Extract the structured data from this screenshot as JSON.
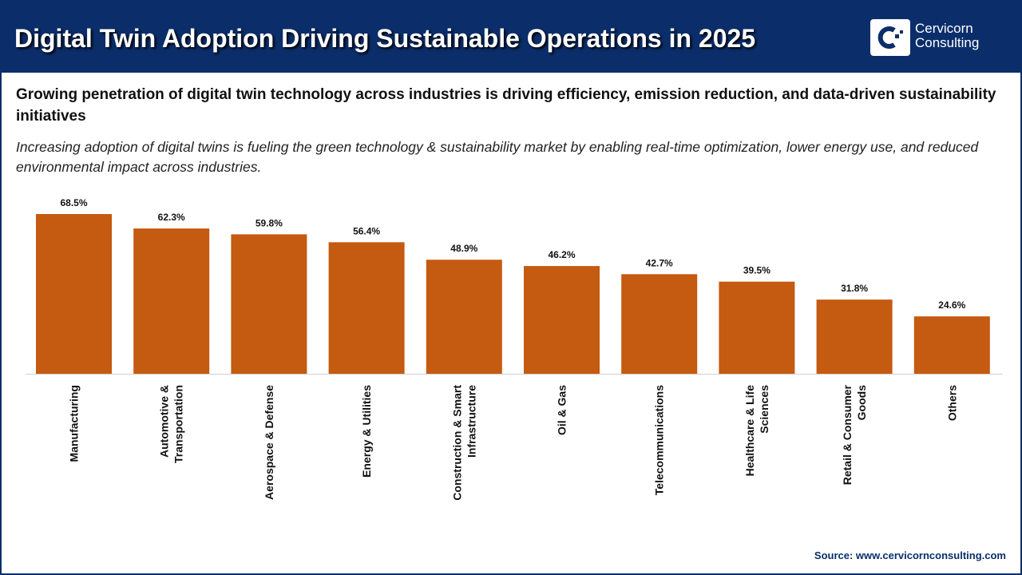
{
  "header": {
    "title": "Digital Twin Adoption Driving Sustainable Operations in 2025",
    "logo_text_line1": "Cervicorn",
    "logo_text_line2": "Consulting",
    "brand_color": "#0b2e6b"
  },
  "subtitle": "Growing penetration of digital twin technology across industries is driving efficiency, emission reduction, and data-driven sustainability initiatives",
  "description": "Increasing adoption of digital twins is fueling the green technology & sustainability market by enabling real-time optimization, lower energy use, and reduced environmental impact across industries.",
  "source": "Source: www.cervicornconsulting.com",
  "chart_data": {
    "type": "bar",
    "categories": [
      [
        "Manufacturing"
      ],
      [
        "Automotive &",
        "Transportation"
      ],
      [
        "Aerospace & Defense"
      ],
      [
        "Energy & Utilities"
      ],
      [
        "Construction & Smart",
        "Infrastructure"
      ],
      [
        "Oil & Gas"
      ],
      [
        "Telecommunications"
      ],
      [
        "Healthcare & Life",
        "Sciences"
      ],
      [
        "Retail & Consumer",
        "Goods"
      ],
      [
        "Others"
      ]
    ],
    "values": [
      68.5,
      62.3,
      59.8,
      56.4,
      48.9,
      46.2,
      42.7,
      39.5,
      31.8,
      24.6
    ],
    "data_labels": [
      "68.5%",
      "62.3%",
      "59.8%",
      "56.4%",
      "48.9%",
      "46.2%",
      "42.7%",
      "39.5%",
      "31.8%",
      "24.6%"
    ],
    "bar_color": "#c55a11",
    "grid": false,
    "ylim": [
      0,
      70
    ]
  }
}
